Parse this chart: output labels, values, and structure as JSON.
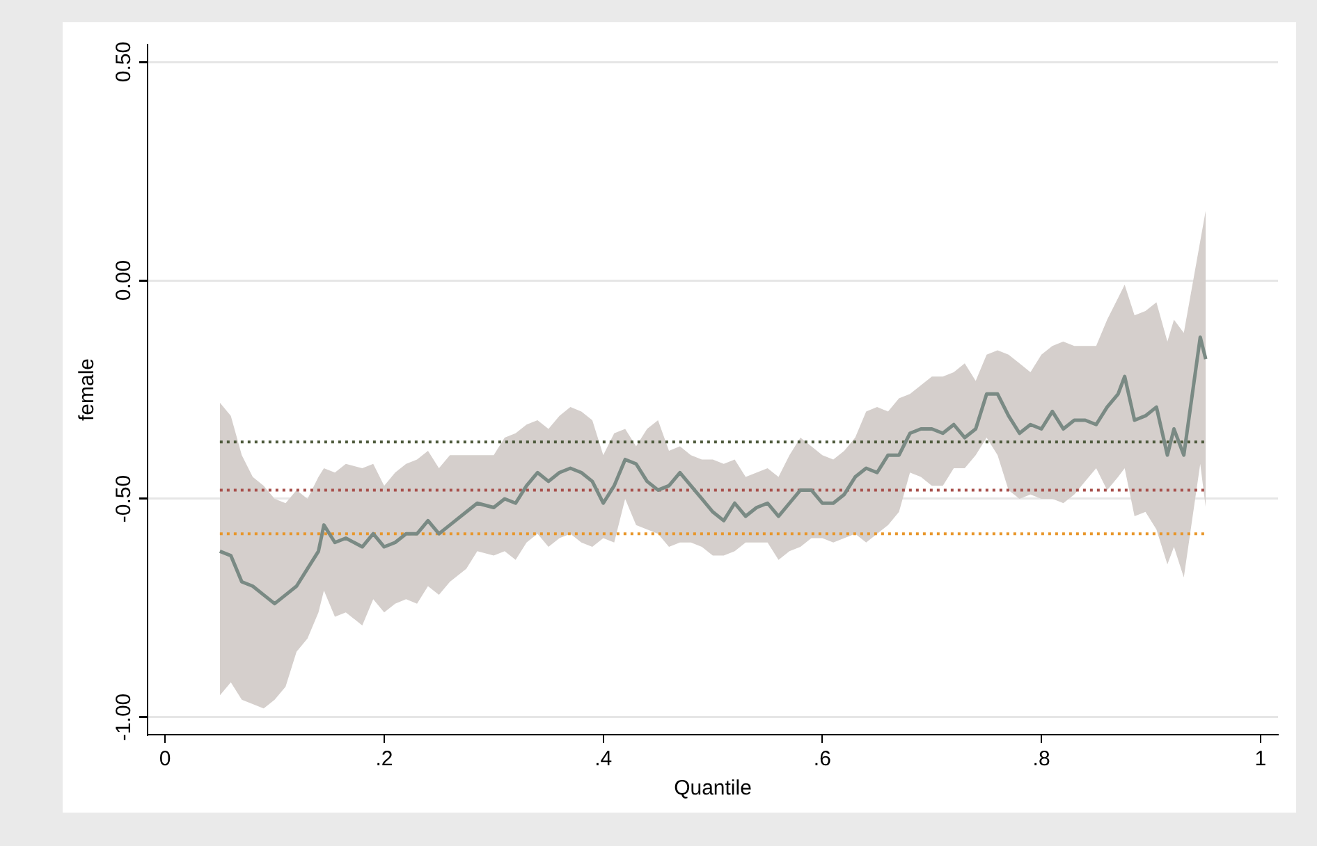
{
  "chart_data": {
    "type": "line",
    "xlabel": "Quantile",
    "ylabel": "female",
    "xlim": [
      -0.016,
      1.016
    ],
    "ylim": [
      -1.04,
      0.54
    ],
    "xticks": [
      0,
      {
        "value": 0.2,
        "label": ".2"
      },
      {
        "value": 0.4,
        "label": ".4"
      },
      {
        "value": 0.6,
        "label": ".6"
      },
      {
        "value": 0.8,
        "label": ".8"
      },
      1
    ],
    "yticks": [
      {
        "value": -1,
        "label": "-1.00"
      },
      {
        "value": -0.5,
        "label": "-0.50"
      },
      {
        "value": 0,
        "label": "0.00"
      },
      {
        "value": 0.5,
        "label": "0.50"
      }
    ],
    "grid": "y",
    "legend": false,
    "series": [
      {
        "color": "#7a8a84",
        "line_style": "solid",
        "x": [
          0.05,
          0.06,
          0.07,
          0.08,
          0.09,
          0.1,
          0.11,
          0.12,
          0.13,
          0.14,
          0.145,
          0.155,
          0.165,
          0.18,
          0.19,
          0.2,
          0.21,
          0.22,
          0.23,
          0.24,
          0.25,
          0.26,
          0.275,
          0.285,
          0.3,
          0.31,
          0.32,
          0.33,
          0.34,
          0.35,
          0.36,
          0.37,
          0.38,
          0.39,
          0.4,
          0.41,
          0.42,
          0.43,
          0.44,
          0.45,
          0.46,
          0.47,
          0.48,
          0.49,
          0.5,
          0.51,
          0.52,
          0.53,
          0.54,
          0.55,
          0.56,
          0.57,
          0.58,
          0.59,
          0.6,
          0.61,
          0.62,
          0.63,
          0.64,
          0.65,
          0.66,
          0.67,
          0.68,
          0.69,
          0.7,
          0.71,
          0.72,
          0.73,
          0.74,
          0.75,
          0.76,
          0.77,
          0.78,
          0.79,
          0.8,
          0.81,
          0.82,
          0.83,
          0.84,
          0.85,
          0.86,
          0.87,
          0.876,
          0.885,
          0.895,
          0.905,
          0.915,
          0.921,
          0.93,
          0.945,
          0.95
        ],
        "values": [
          -0.62,
          -0.63,
          -0.69,
          -0.7,
          -0.72,
          -0.74,
          -0.72,
          -0.7,
          -0.66,
          -0.62,
          -0.56,
          -0.6,
          -0.59,
          -0.61,
          -0.58,
          -0.61,
          -0.6,
          -0.58,
          -0.58,
          -0.55,
          -0.58,
          -0.56,
          -0.53,
          -0.51,
          -0.52,
          -0.5,
          -0.51,
          -0.47,
          -0.44,
          -0.46,
          -0.44,
          -0.43,
          -0.44,
          -0.46,
          -0.51,
          -0.47,
          -0.41,
          -0.42,
          -0.46,
          -0.48,
          -0.47,
          -0.44,
          -0.47,
          -0.5,
          -0.53,
          -0.55,
          -0.51,
          -0.54,
          -0.52,
          -0.51,
          -0.54,
          -0.51,
          -0.48,
          -0.48,
          -0.51,
          -0.51,
          -0.49,
          -0.45,
          -0.43,
          -0.44,
          -0.4,
          -0.4,
          -0.35,
          -0.34,
          -0.34,
          -0.35,
          -0.33,
          -0.36,
          -0.34,
          -0.26,
          -0.26,
          -0.31,
          -0.35,
          -0.33,
          -0.34,
          -0.3,
          -0.34,
          -0.32,
          -0.32,
          -0.33,
          -0.29,
          -0.26,
          -0.22,
          -0.32,
          -0.31,
          -0.29,
          -0.4,
          -0.34,
          -0.4,
          -0.13,
          -0.18
        ],
        "lower": [
          -0.95,
          -0.92,
          -0.96,
          -0.97,
          -0.98,
          -0.96,
          -0.93,
          -0.85,
          -0.82,
          -0.76,
          -0.71,
          -0.77,
          -0.76,
          -0.79,
          -0.73,
          -0.76,
          -0.74,
          -0.73,
          -0.74,
          -0.7,
          -0.72,
          -0.69,
          -0.66,
          -0.62,
          -0.63,
          -0.62,
          -0.64,
          -0.6,
          -0.58,
          -0.61,
          -0.59,
          -0.58,
          -0.6,
          -0.61,
          -0.59,
          -0.6,
          -0.5,
          -0.56,
          -0.57,
          -0.58,
          -0.61,
          -0.6,
          -0.6,
          -0.61,
          -0.63,
          -0.63,
          -0.62,
          -0.6,
          -0.6,
          -0.6,
          -0.64,
          -0.62,
          -0.61,
          -0.59,
          -0.59,
          -0.6,
          -0.59,
          -0.58,
          -0.6,
          -0.58,
          -0.56,
          -0.53,
          -0.44,
          -0.45,
          -0.47,
          -0.47,
          -0.43,
          -0.43,
          -0.4,
          -0.36,
          -0.4,
          -0.48,
          -0.5,
          -0.49,
          -0.5,
          -0.5,
          -0.51,
          -0.49,
          -0.46,
          -0.43,
          -0.48,
          -0.45,
          -0.43,
          -0.54,
          -0.53,
          -0.57,
          -0.65,
          -0.61,
          -0.68,
          -0.42,
          -0.52
        ],
        "upper": [
          -0.28,
          -0.31,
          -0.4,
          -0.45,
          -0.47,
          -0.5,
          -0.51,
          -0.48,
          -0.5,
          -0.45,
          -0.43,
          -0.44,
          -0.42,
          -0.43,
          -0.42,
          -0.47,
          -0.44,
          -0.42,
          -0.41,
          -0.39,
          -0.43,
          -0.4,
          -0.4,
          -0.4,
          -0.4,
          -0.36,
          -0.35,
          -0.33,
          -0.32,
          -0.34,
          -0.31,
          -0.29,
          -0.3,
          -0.32,
          -0.4,
          -0.35,
          -0.34,
          -0.38,
          -0.34,
          -0.32,
          -0.39,
          -0.38,
          -0.4,
          -0.41,
          -0.41,
          -0.42,
          -0.41,
          -0.45,
          -0.44,
          -0.43,
          -0.45,
          -0.4,
          -0.36,
          -0.38,
          -0.4,
          -0.41,
          -0.39,
          -0.36,
          -0.3,
          -0.29,
          -0.3,
          -0.27,
          -0.26,
          -0.24,
          -0.22,
          -0.22,
          -0.21,
          -0.19,
          -0.23,
          -0.17,
          -0.16,
          -0.17,
          -0.19,
          -0.21,
          -0.17,
          -0.15,
          -0.14,
          -0.15,
          -0.15,
          -0.15,
          -0.09,
          -0.04,
          -0.01,
          -0.08,
          -0.07,
          -0.05,
          -0.14,
          -0.09,
          -0.12,
          0.09,
          0.16
        ]
      },
      {
        "color": "#4e5a3c",
        "line_style": "dotted",
        "x": [
          0.05,
          0.95
        ],
        "values": [
          -0.37,
          -0.37
        ]
      },
      {
        "color": "#a8504c",
        "line_style": "dotted",
        "x": [
          0.05,
          0.95
        ],
        "values": [
          -0.48,
          -0.48
        ]
      },
      {
        "color": "#e8962a",
        "line_style": "dotted",
        "x": [
          0.05,
          0.95
        ],
        "values": [
          -0.58,
          -0.58
        ]
      }
    ]
  }
}
